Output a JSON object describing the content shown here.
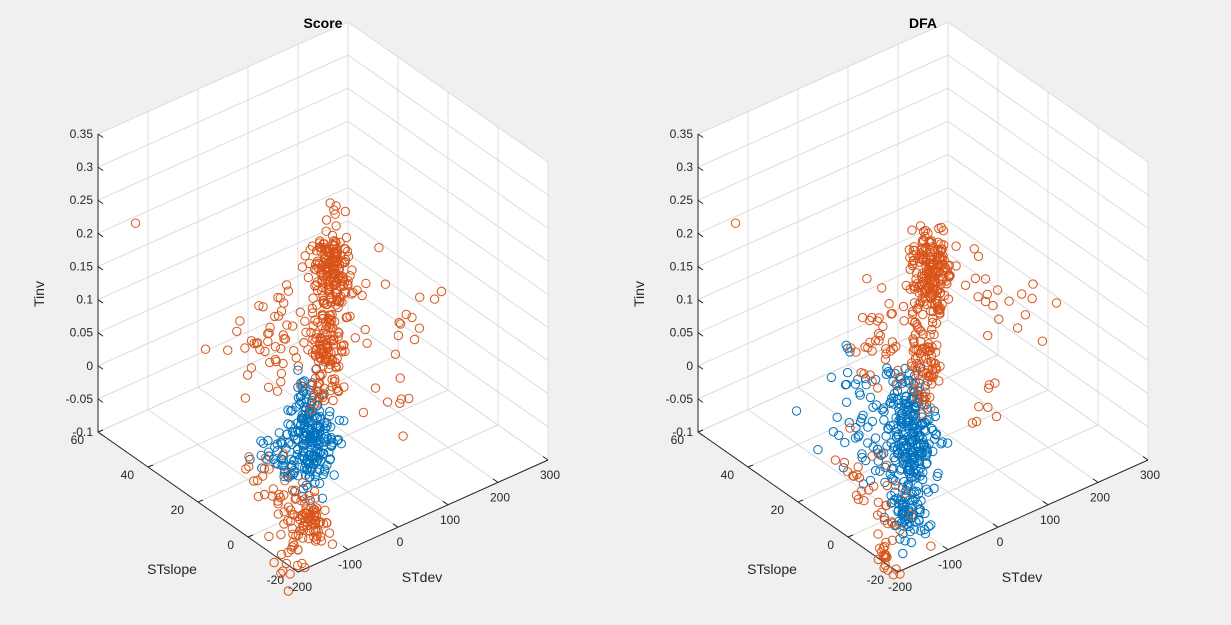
{
  "colors": {
    "blue": "#0072bd",
    "orange": "#d95319",
    "background": "#f0f0f0",
    "pane": "#ffffff",
    "grid": "#dcdcdc",
    "axis": "#262626"
  },
  "chart_data": [
    {
      "type": "scatter",
      "title": "Score",
      "xlabel": "STdev",
      "ylabel": "STslope",
      "zlabel": "Tinv",
      "xlim": [
        -200,
        300
      ],
      "ylim": [
        -20,
        60
      ],
      "zlim": [
        -0.1,
        0.35
      ],
      "xticks": [
        "-200",
        "-100",
        "0",
        "100",
        "200",
        "300"
      ],
      "yticks": [
        "-20",
        "0",
        "20",
        "40",
        "60"
      ],
      "zticks": [
        "-0.1",
        "-0.05",
        "0",
        "0.05",
        "0.1",
        "0.15",
        "0.2",
        "0.25",
        "0.3",
        "0.35"
      ],
      "grid": true,
      "marker": "circle",
      "series": [
        {
          "color": "#0072bd",
          "clusters": [
            {
              "center": [
                -60,
                3,
                0.0
              ],
              "spread": [
                12,
                4,
                0.035
              ],
              "count": 210
            },
            {
              "center": [
                -95,
                8,
                -0.035
              ],
              "spread": [
                8,
                4,
                0.02
              ],
              "count": 45
            }
          ]
        },
        {
          "color": "#d95319",
          "clusters": [
            {
              "center": [
                -10,
                5,
                0.22
              ],
              "spread": [
                15,
                3,
                0.035
              ],
              "count": 190
            },
            {
              "center": [
                -20,
                5,
                0.1
              ],
              "spread": [
                10,
                3,
                0.04
              ],
              "count": 120
            },
            {
              "center": [
                -80,
                12,
                0.12
              ],
              "spread": [
                25,
                5,
                0.04
              ],
              "count": 50
            },
            {
              "center": [
                -100,
                -5,
                -0.09
              ],
              "spread": [
                10,
                3,
                0.02
              ],
              "count": 70
            },
            {
              "center": [
                -145,
                -2,
                -0.05
              ],
              "spread": [
                10,
                8,
                0.03
              ],
              "count": 35
            },
            {
              "center": [
                -155,
                -8,
                -0.13
              ],
              "spread": [
                5,
                3,
                0.02
              ],
              "count": 18
            },
            {
              "center": [
                110,
                0,
                0.15
              ],
              "spread": [
                55,
                12,
                0.03
              ],
              "count": 22
            },
            {
              "center": [
                70,
                -3,
                0.015
              ],
              "spread": [
                30,
                4,
                0.02
              ],
              "count": 8
            }
          ],
          "points": [
            [
              -200,
              45,
              0.255
            ]
          ]
        }
      ]
    },
    {
      "type": "scatter",
      "title": "DFA",
      "xlabel": "STdev",
      "ylabel": "STslope",
      "zlabel": "Tinv",
      "xlim": [
        -200,
        300
      ],
      "ylim": [
        -20,
        60
      ],
      "zlim": [
        -0.1,
        0.35
      ],
      "xticks": [
        "-200",
        "-100",
        "0",
        "100",
        "200",
        "300"
      ],
      "yticks": [
        "-20",
        "0",
        "20",
        "40",
        "60"
      ],
      "zticks": [
        "-0.1",
        "-0.05",
        "0",
        "0.05",
        "0.1",
        "0.15",
        "0.2",
        "0.25",
        "0.3",
        "0.35"
      ],
      "grid": true,
      "marker": "circle",
      "series": [
        {
          "color": "#0072bd",
          "clusters": [
            {
              "center": [
                -60,
                3,
                0.0
              ],
              "spread": [
                14,
                4,
                0.045
              ],
              "count": 260
            },
            {
              "center": [
                -100,
                -4,
                -0.09
              ],
              "spread": [
                10,
                3,
                0.02
              ],
              "count": 70
            },
            {
              "center": [
                -110,
                12,
                0.02
              ],
              "spread": [
                18,
                6,
                0.05
              ],
              "count": 55
            }
          ]
        },
        {
          "color": "#d95319",
          "clusters": [
            {
              "center": [
                -10,
                5,
                0.22
              ],
              "spread": [
                15,
                3,
                0.035
              ],
              "count": 190
            },
            {
              "center": [
                -20,
                5,
                0.1
              ],
              "spread": [
                10,
                3,
                0.04
              ],
              "count": 90
            },
            {
              "center": [
                -80,
                12,
                0.12
              ],
              "spread": [
                25,
                5,
                0.04
              ],
              "count": 40
            },
            {
              "center": [
                -145,
                -2,
                -0.05
              ],
              "spread": [
                10,
                8,
                0.03
              ],
              "count": 35
            },
            {
              "center": [
                -155,
                -8,
                -0.13
              ],
              "spread": [
                5,
                3,
                0.02
              ],
              "count": 18
            },
            {
              "center": [
                110,
                0,
                0.15
              ],
              "spread": [
                55,
                12,
                0.03
              ],
              "count": 22
            },
            {
              "center": [
                70,
                -3,
                0.015
              ],
              "spread": [
                30,
                4,
                0.02
              ],
              "count": 8
            }
          ],
          "points": [
            [
              -200,
              45,
              0.255
            ]
          ]
        }
      ]
    }
  ]
}
